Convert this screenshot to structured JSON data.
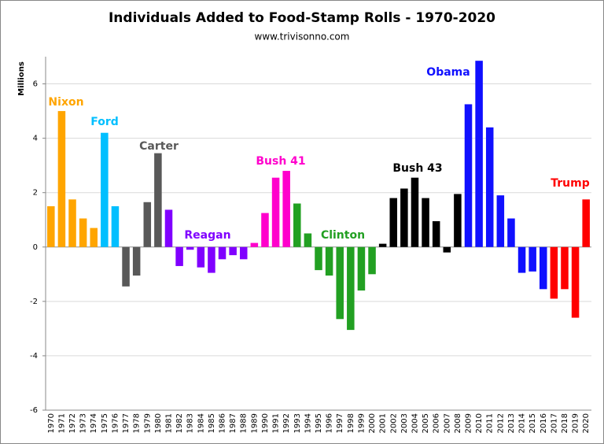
{
  "chart_data": {
    "type": "bar",
    "title": "Individuals Added to Food-Stamp Rolls - 1970-2020",
    "subtitle": "www.trivisonno.com",
    "y_label": "Millions",
    "categories": [
      "1970",
      "1971",
      "1972",
      "1973",
      "1974",
      "1975",
      "1976",
      "1977",
      "1978",
      "1979",
      "1980",
      "1981",
      "1982",
      "1983",
      "1984",
      "1985",
      "1986",
      "1987",
      "1988",
      "1989",
      "1990",
      "1991",
      "1992",
      "1993",
      "1994",
      "1995",
      "1996",
      "1997",
      "1998",
      "1999",
      "2000",
      "2001",
      "2002",
      "2003",
      "2004",
      "2005",
      "2006",
      "2007",
      "2008",
      "2009",
      "2010",
      "2011",
      "2012",
      "2013",
      "2014",
      "2015",
      "2016",
      "2017",
      "2018",
      "2019",
      "2020"
    ],
    "values": [
      1.5,
      5.0,
      1.75,
      1.05,
      0.7,
      4.2,
      1.5,
      -1.45,
      -1.05,
      1.65,
      3.45,
      1.37,
      -0.7,
      -0.1,
      -0.75,
      -0.95,
      -0.45,
      -0.3,
      -0.45,
      0.15,
      1.25,
      2.55,
      2.8,
      1.6,
      0.5,
      -0.85,
      -1.05,
      -2.65,
      -3.05,
      -1.6,
      -1.0,
      0.12,
      1.8,
      2.15,
      2.55,
      1.8,
      0.95,
      -0.2,
      1.95,
      5.25,
      6.85,
      4.4,
      1.9,
      1.05,
      -0.95,
      -0.9,
      -1.55,
      -1.9,
      -1.55,
      -2.6,
      1.75
    ],
    "colors": [
      "#ffa500",
      "#ffa500",
      "#ffa500",
      "#ffa500",
      "#ffa500",
      "#00bfff",
      "#00bfff",
      "#595959",
      "#595959",
      "#595959",
      "#595959",
      "#8000ff",
      "#8000ff",
      "#8000ff",
      "#8000ff",
      "#8000ff",
      "#8000ff",
      "#8000ff",
      "#8000ff",
      "#ff00cc",
      "#ff00cc",
      "#ff00cc",
      "#ff00cc",
      "#22a022",
      "#22a022",
      "#22a022",
      "#22a022",
      "#22a022",
      "#22a022",
      "#22a022",
      "#22a022",
      "#000000",
      "#000000",
      "#000000",
      "#000000",
      "#000000",
      "#000000",
      "#000000",
      "#000000",
      "#1010ff",
      "#1010ff",
      "#1010ff",
      "#1010ff",
      "#1010ff",
      "#1010ff",
      "#1010ff",
      "#1010ff",
      "#ff0000",
      "#ff0000",
      "#ff0000",
      "#ff0000"
    ],
    "ylim": [
      -6,
      7
    ],
    "yticks": [
      -6,
      -4,
      -2,
      0,
      2,
      4,
      6
    ],
    "grid": true,
    "annotations": [
      {
        "text": "Nixon",
        "color": "#ffa500"
      },
      {
        "text": "Ford",
        "color": "#00bfff"
      },
      {
        "text": "Carter",
        "color": "#595959"
      },
      {
        "text": "Reagan",
        "color": "#8000ff"
      },
      {
        "text": "Bush 41",
        "color": "#ff00cc"
      },
      {
        "text": "Clinton",
        "color": "#22a022"
      },
      {
        "text": "Bush 43",
        "color": "#000000"
      },
      {
        "text": "Obama",
        "color": "#1010ff"
      },
      {
        "text": "Trump",
        "color": "#ff0000"
      }
    ]
  }
}
